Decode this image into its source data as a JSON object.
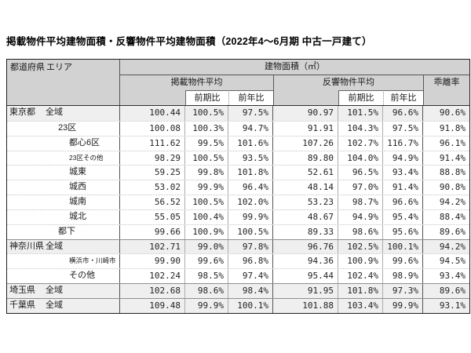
{
  "title": "掲載物件平均建物面積・反響物件平均建物面積（2022年4～6月期 中古一戸建て）",
  "colors": {
    "header_bg": "#d2d2d2",
    "highlight_row_bg": "#efefef",
    "outer_border": "#1f1f1f",
    "inner_border": "#ababab",
    "section_border": "#555555"
  },
  "table": {
    "corner": {
      "pref": "都道府県",
      "area": "エリア"
    },
    "group_header": "建物面積（㎡）",
    "listed_header": "掲載物件平均",
    "response_header": "反響物件平均",
    "deviation_header": "乖離率",
    "prev_period_label": "前期比",
    "prev_year_label": "前年比",
    "rows": [
      {
        "pref": "東京都",
        "area": "全域",
        "level": 0,
        "small": false,
        "highlight": true,
        "group_start": true,
        "values": [
          "100.44",
          "100.5%",
          "97.5%",
          "90.97",
          "101.5%",
          "96.6%",
          "90.6%"
        ]
      },
      {
        "pref": "",
        "area": "23区",
        "level": 1,
        "small": false,
        "highlight": false,
        "group_start": false,
        "values": [
          "100.08",
          "100.3%",
          "94.7%",
          "91.91",
          "104.3%",
          "97.5%",
          "91.8%"
        ]
      },
      {
        "pref": "",
        "area": "都心6区",
        "level": 2,
        "small": false,
        "highlight": false,
        "group_start": false,
        "values": [
          "111.62",
          "99.5%",
          "101.6%",
          "107.26",
          "102.7%",
          "116.7%",
          "96.1%"
        ]
      },
      {
        "pref": "",
        "area": "23区その他",
        "level": 2,
        "small": true,
        "highlight": false,
        "group_start": false,
        "values": [
          "98.29",
          "100.5%",
          "93.5%",
          "89.80",
          "104.0%",
          "94.9%",
          "91.4%"
        ]
      },
      {
        "pref": "",
        "area": "城東",
        "level": 2,
        "small": false,
        "highlight": false,
        "group_start": false,
        "values": [
          "59.25",
          "99.8%",
          "101.8%",
          "52.61",
          "96.5%",
          "93.4%",
          "88.8%"
        ]
      },
      {
        "pref": "",
        "area": "城西",
        "level": 2,
        "small": false,
        "highlight": false,
        "group_start": false,
        "values": [
          "53.02",
          "99.9%",
          "96.4%",
          "48.14",
          "97.0%",
          "91.4%",
          "90.8%"
        ]
      },
      {
        "pref": "",
        "area": "城南",
        "level": 2,
        "small": false,
        "highlight": false,
        "group_start": false,
        "values": [
          "56.52",
          "100.5%",
          "102.0%",
          "53.23",
          "98.7%",
          "96.6%",
          "94.2%"
        ]
      },
      {
        "pref": "",
        "area": "城北",
        "level": 2,
        "small": false,
        "highlight": false,
        "group_start": false,
        "values": [
          "55.05",
          "100.4%",
          "99.9%",
          "48.67",
          "94.9%",
          "95.4%",
          "88.4%"
        ]
      },
      {
        "pref": "",
        "area": "都下",
        "level": 1,
        "small": false,
        "highlight": false,
        "group_start": false,
        "values": [
          "99.66",
          "100.9%",
          "100.5%",
          "89.33",
          "98.6%",
          "95.6%",
          "89.6%"
        ]
      },
      {
        "pref": "神奈川県",
        "area": "全域",
        "level": 0,
        "small": false,
        "highlight": true,
        "group_start": true,
        "values": [
          "102.71",
          "99.0%",
          "97.8%",
          "96.76",
          "102.5%",
          "100.1%",
          "94.2%"
        ]
      },
      {
        "pref": "",
        "area": "横浜市・川崎市",
        "level": 2,
        "small": true,
        "highlight": false,
        "group_start": false,
        "values": [
          "99.90",
          "99.6%",
          "96.8%",
          "94.36",
          "100.9%",
          "99.6%",
          "94.5%"
        ]
      },
      {
        "pref": "",
        "area": "その他",
        "level": 2,
        "small": false,
        "highlight": false,
        "group_start": false,
        "values": [
          "102.24",
          "98.5%",
          "97.4%",
          "95.44",
          "102.4%",
          "98.9%",
          "93.4%"
        ]
      },
      {
        "pref": "埼玉県",
        "area": "全域",
        "level": 0,
        "small": false,
        "highlight": true,
        "group_start": true,
        "values": [
          "102.68",
          "98.6%",
          "98.4%",
          "91.95",
          "101.8%",
          "97.3%",
          "89.6%"
        ]
      },
      {
        "pref": "千葉県",
        "area": "全域",
        "level": 0,
        "small": false,
        "highlight": true,
        "group_start": true,
        "values": [
          "109.48",
          "99.9%",
          "100.1%",
          "101.88",
          "103.4%",
          "99.9%",
          "93.1%"
        ]
      }
    ]
  }
}
